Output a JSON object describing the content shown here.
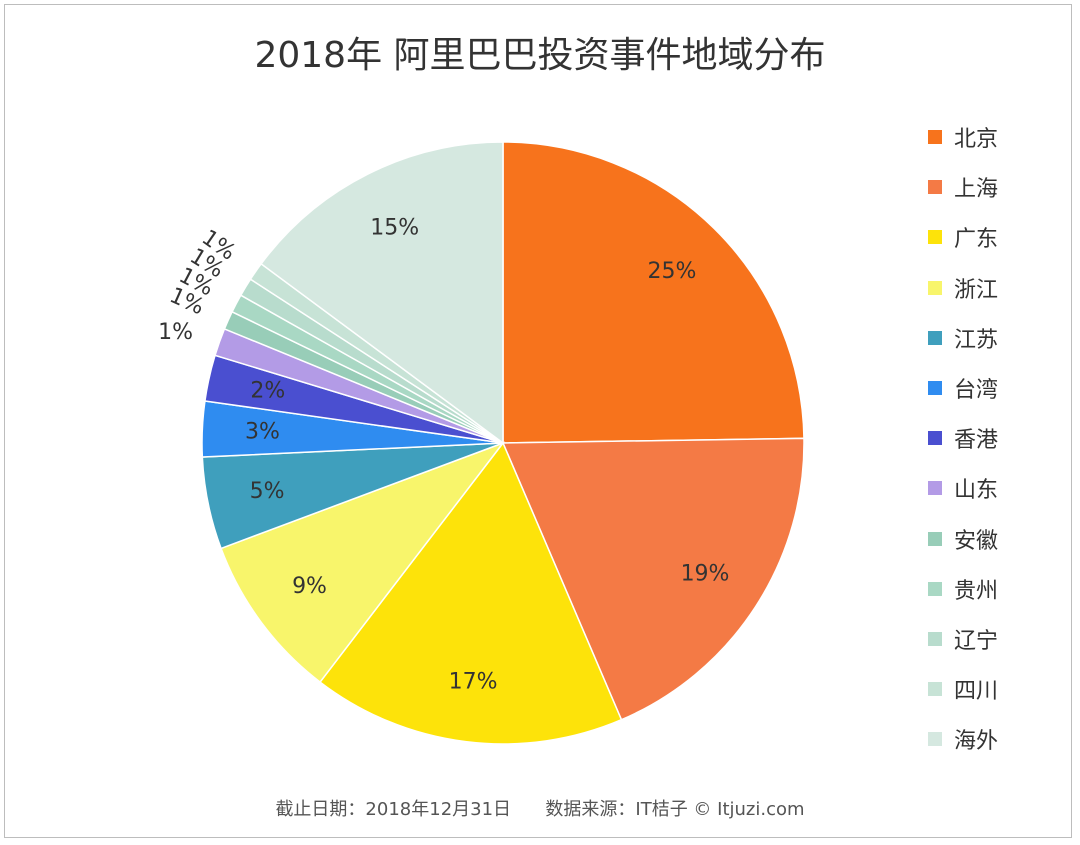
{
  "chart_data": {
    "type": "pie",
    "title": "2018年 阿里巴巴投资事件地域分布",
    "categories": [
      "北京",
      "上海",
      "广东",
      "浙江",
      "江苏",
      "台湾",
      "香港",
      "山东",
      "安徽",
      "贵州",
      "辽宁",
      "四川",
      "海外"
    ],
    "values": [
      25,
      19,
      17,
      9,
      5,
      3,
      2.5,
      1.5,
      1,
      1,
      1,
      1,
      15
    ],
    "data_labels": [
      "25%",
      "19%",
      "17%",
      "9%",
      "5%",
      "3%",
      "2%",
      "1%",
      "1%",
      "1%",
      "1%",
      "1%",
      "15%"
    ],
    "colors": [
      "#f7731c",
      "#f47a45",
      "#fde30a",
      "#f8f56b",
      "#3f9fbd",
      "#2f8cf0",
      "#4a4fd0",
      "#b39be6",
      "#98cdb8",
      "#a9d8c4",
      "#b8dccd",
      "#c7e3d6",
      "#d5e8e0"
    ],
    "legend_position": "right",
    "footer": {
      "date": "截止日期：2018年12月31日",
      "source": "数据来源：IT桔子 © Itjuzi.com"
    }
  }
}
